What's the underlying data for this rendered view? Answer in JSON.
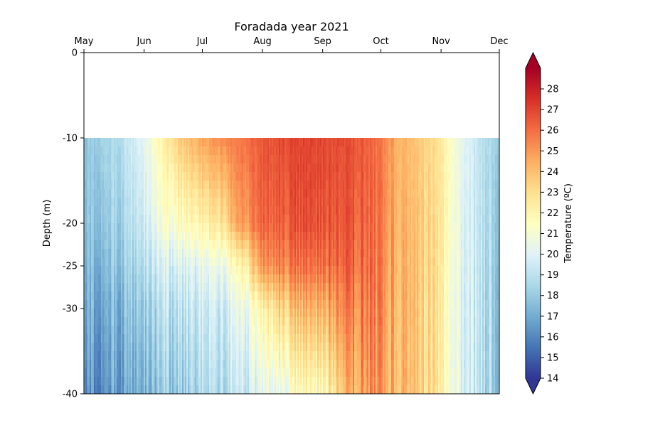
{
  "chart_data": {
    "type": "heatmap",
    "title": "Foradada year 2021",
    "xlabel": "",
    "ylabel": "Depth (m)",
    "x_axis_position": "top",
    "x_tick_labels": [
      "May",
      "Jun",
      "Jul",
      "Aug",
      "Sep",
      "Oct",
      "Nov",
      "Dec"
    ],
    "x_tick_dates": [
      "2021-05-01",
      "2021-06-01",
      "2021-07-01",
      "2021-08-01",
      "2021-09-01",
      "2021-10-01",
      "2021-11-01",
      "2021-12-01"
    ],
    "xlim": [
      "2021-05-01",
      "2021-12-01"
    ],
    "y_ticks": [
      0,
      -10,
      -20,
      -25,
      -30,
      -40
    ],
    "ylim": [
      -40,
      0
    ],
    "grid": false,
    "data_depth_range": [
      -40,
      -10
    ],
    "colorbar": {
      "label": "Temperature (ºC)",
      "ticks": [
        14,
        15,
        16,
        17,
        18,
        19,
        20,
        21,
        22,
        23,
        24,
        25,
        26,
        27,
        28
      ],
      "range": [
        14,
        29
      ],
      "extend": "both",
      "colormap": "RdYlBu_r",
      "colors": [
        "#313695",
        "#4575b4",
        "#74add1",
        "#abd9e9",
        "#e0f3f8",
        "#ffffbf",
        "#fee090",
        "#fdae61",
        "#f46d43",
        "#d73027",
        "#a50026"
      ]
    },
    "depth_levels": [
      -10,
      -20,
      -25,
      -30,
      -40
    ],
    "series": [
      {
        "x": "2021-05-01",
        "temps": [
          17.8,
          17.6,
          17.3,
          17.0,
          16.2
        ]
      },
      {
        "x": "2021-05-10",
        "temps": [
          18.3,
          18.0,
          17.6,
          17.2,
          16.5
        ]
      },
      {
        "x": "2021-05-20",
        "temps": [
          18.8,
          18.4,
          18.0,
          17.5,
          16.8
        ]
      },
      {
        "x": "2021-06-01",
        "temps": [
          20.3,
          19.6,
          19.0,
          18.3,
          17.4
        ]
      },
      {
        "x": "2021-06-10",
        "temps": [
          22.0,
          20.8,
          19.6,
          18.8,
          17.8
        ]
      },
      {
        "x": "2021-06-20",
        "temps": [
          23.8,
          21.6,
          20.0,
          19.2,
          18.2
        ]
      },
      {
        "x": "2021-07-01",
        "temps": [
          24.6,
          22.0,
          20.2,
          19.3,
          18.5
        ]
      },
      {
        "x": "2021-07-10",
        "temps": [
          25.3,
          22.8,
          20.6,
          19.6,
          18.8
        ]
      },
      {
        "x": "2021-07-20",
        "temps": [
          25.8,
          24.8,
          21.8,
          20.4,
          19.4
        ]
      },
      {
        "x": "2021-08-01",
        "temps": [
          26.4,
          26.0,
          24.6,
          21.6,
          19.8
        ]
      },
      {
        "x": "2021-08-10",
        "temps": [
          26.8,
          26.4,
          25.6,
          23.4,
          20.6
        ]
      },
      {
        "x": "2021-08-20",
        "temps": [
          27.0,
          26.6,
          25.8,
          24.0,
          21.4
        ]
      },
      {
        "x": "2021-09-01",
        "temps": [
          27.0,
          26.8,
          26.2,
          24.6,
          22.0
        ]
      },
      {
        "x": "2021-09-10",
        "temps": [
          26.8,
          26.6,
          26.2,
          25.4,
          23.6
        ]
      },
      {
        "x": "2021-09-20",
        "temps": [
          26.6,
          26.5,
          26.2,
          25.8,
          25.0
        ]
      },
      {
        "x": "2021-10-01",
        "temps": [
          25.8,
          25.7,
          25.6,
          25.4,
          25.0
        ]
      },
      {
        "x": "2021-10-10",
        "temps": [
          24.3,
          24.3,
          24.2,
          24.1,
          24.0
        ]
      },
      {
        "x": "2021-10-20",
        "temps": [
          23.7,
          23.7,
          23.6,
          23.5,
          23.4
        ]
      },
      {
        "x": "2021-11-01",
        "temps": [
          22.6,
          22.6,
          22.5,
          22.4,
          22.3
        ]
      },
      {
        "x": "2021-11-10",
        "temps": [
          20.6,
          20.6,
          20.6,
          20.5,
          20.5
        ]
      },
      {
        "x": "2021-11-20",
        "temps": [
          19.2,
          19.2,
          19.2,
          19.2,
          19.1
        ]
      },
      {
        "x": "2021-12-01",
        "temps": [
          18.2,
          18.2,
          18.2,
          18.2,
          18.1
        ]
      }
    ]
  }
}
